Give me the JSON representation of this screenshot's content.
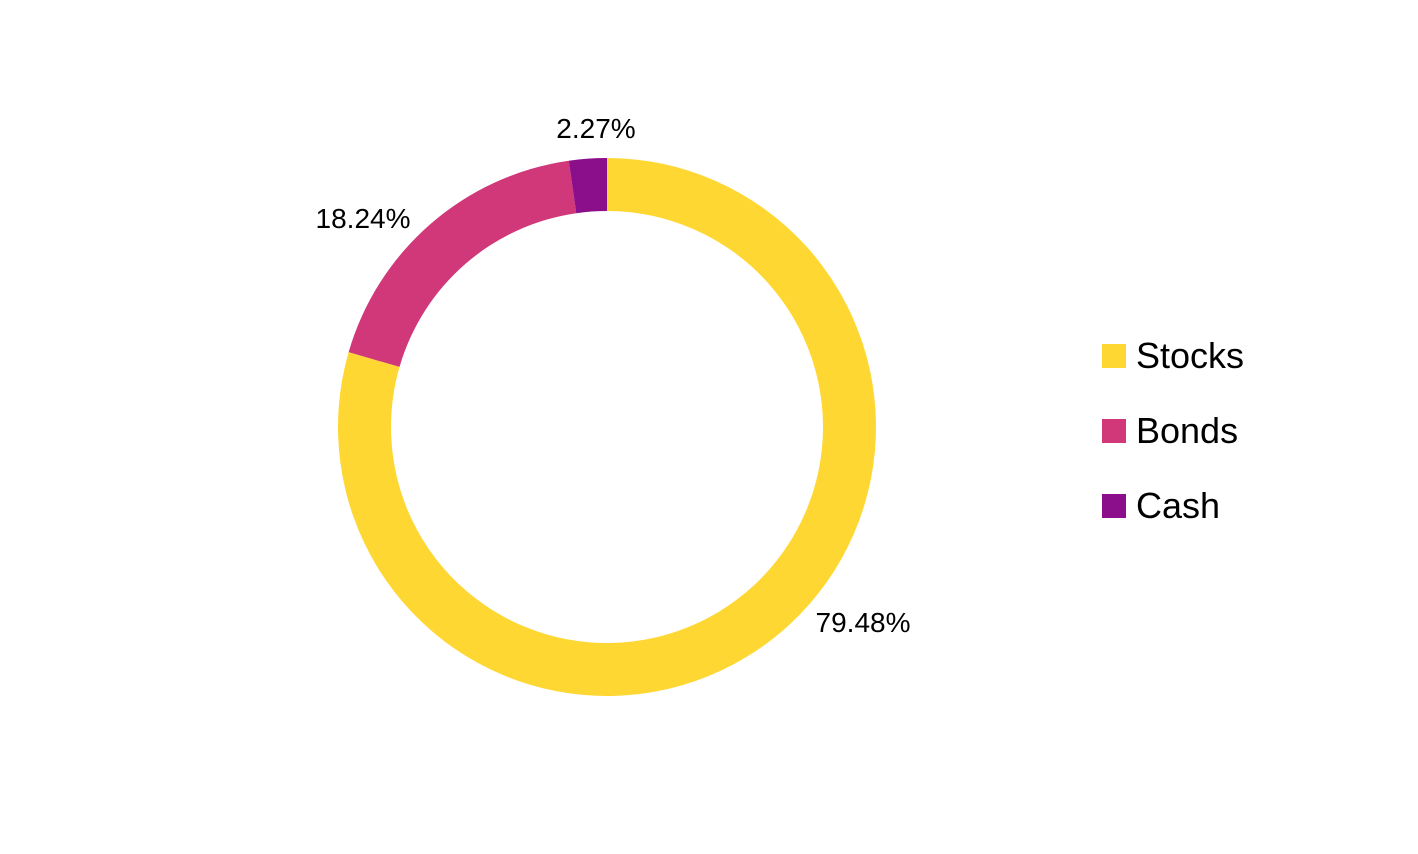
{
  "chart_data": {
    "type": "pie",
    "variant": "donut",
    "categories": [
      "Stocks",
      "Bonds",
      "Cash"
    ],
    "values": [
      79.48,
      18.24,
      2.27
    ],
    "labels": [
      "79.48%",
      "18.24%",
      "2.27%"
    ],
    "colors": [
      "#FFD733",
      "#D0387A",
      "#8B0E8B"
    ],
    "legend_position": "right",
    "start_angle": "12 o'clock",
    "direction": "clockwise"
  }
}
